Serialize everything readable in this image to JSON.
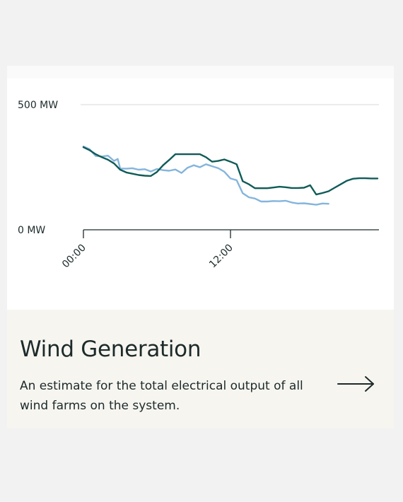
{
  "card": {
    "title": "Wind Generation",
    "description": "An estimate for the total electrical output of all wind farms on the system.",
    "arrow_icon": "arrow-right-icon"
  },
  "colors": {
    "actual": "#0f5b58",
    "forecast": "#84b5dd",
    "axis": "#1c2a2a",
    "grid": "#d9d9d9"
  },
  "chart_data": {
    "type": "line",
    "title": "",
    "xlabel": "",
    "ylabel": "",
    "x_unit": "hours",
    "xlim": [
      0,
      24
    ],
    "ylim": [
      0,
      500
    ],
    "grid": "horizontal",
    "legend": "none",
    "y_ticks": [
      {
        "value": 0,
        "label": "0 MW"
      },
      {
        "value": 500,
        "label": "500 MW"
      }
    ],
    "x_ticks": [
      {
        "value": 0,
        "label": "00:00"
      },
      {
        "value": 12,
        "label": "12:00"
      }
    ],
    "series": [
      {
        "key": "actual",
        "x": [
          0,
          0.5,
          1,
          1.5,
          2,
          2.5,
          3,
          3.5,
          4,
          4.5,
          5,
          5.5,
          6,
          6.5,
          7,
          7.5,
          8,
          8.5,
          9,
          9.5,
          10,
          10.5,
          11,
          11.5,
          12,
          12.5,
          13,
          13.5,
          14,
          14.5,
          15,
          15.5,
          16,
          16.5,
          17,
          17.5,
          18,
          18.5,
          19,
          19.5,
          20,
          20.5,
          21,
          21.5,
          22,
          22.5,
          23,
          23.5,
          24
        ],
        "y": [
          330,
          318,
          302,
          290,
          280,
          265,
          240,
          229,
          224,
          219,
          216,
          215,
          231,
          258,
          279,
          302,
          302,
          302,
          302,
          302,
          290,
          272,
          275,
          281,
          272,
          262,
          194,
          182,
          166,
          166,
          166,
          169,
          172,
          170,
          167,
          167,
          168,
          178,
          141,
          147,
          154,
          168,
          182,
          196,
          204,
          206,
          206,
          205,
          205
        ]
      },
      {
        "key": "forecast",
        "x": [
          0,
          0.5,
          1,
          1.5,
          2,
          2.5,
          2.8,
          3,
          3.5,
          4,
          4.5,
          5,
          5.5,
          6,
          6.5,
          7,
          7.5,
          8,
          8.5,
          9,
          9.5,
          10,
          10.5,
          11,
          11.5,
          12,
          12.5,
          13,
          13.5,
          14,
          14.5,
          15,
          15.5,
          16,
          16.5,
          17,
          17.5,
          18,
          18.5,
          19,
          19.5,
          20
        ],
        "y": [
          333,
          322,
          295,
          293,
          296,
          275,
          283,
          245,
          244,
          246,
          240,
          242,
          233,
          243,
          238,
          236,
          241,
          227,
          248,
          258,
          250,
          262,
          254,
          246,
          232,
          205,
          198,
          146,
          130,
          125,
          113,
          113,
          115,
          114,
          116,
          109,
          105,
          106,
          103,
          100,
          105,
          104
        ]
      }
    ]
  }
}
